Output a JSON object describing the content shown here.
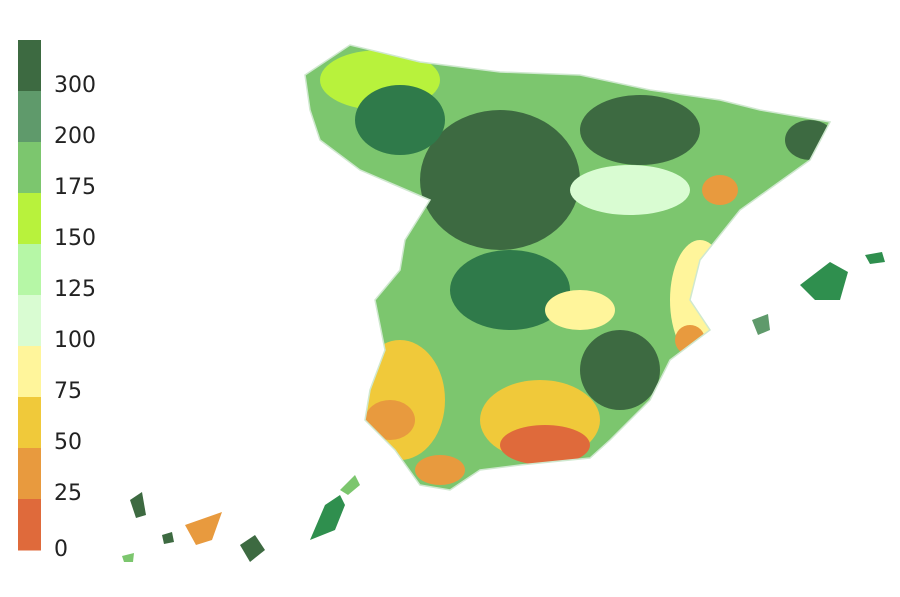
{
  "legend": {
    "labels": [
      300,
      200,
      175,
      150,
      125,
      100,
      75,
      50,
      25,
      0
    ],
    "colors": [
      "#3d6a41",
      "#5f9a6b",
      "#7cc66e",
      "#b8f23c",
      "#b6f7a6",
      "#d9fcd2",
      "#fff59b",
      "#f0c93a",
      "#e89a3e",
      "#df6a3b"
    ]
  }
}
